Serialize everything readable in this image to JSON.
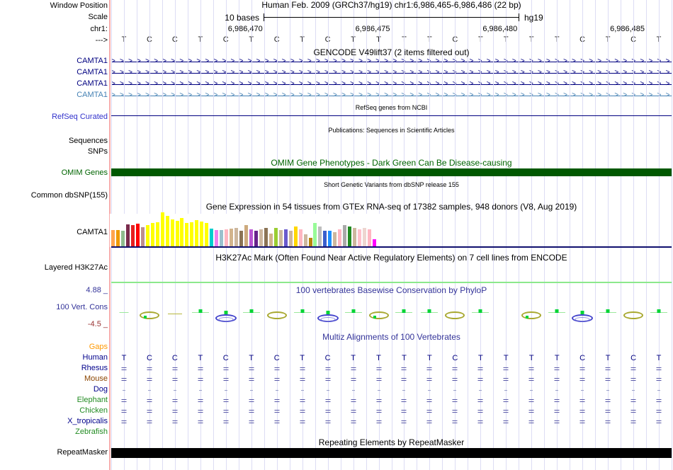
{
  "header": {
    "title": "Human Feb. 2009 (GRCh37/hg19)   chr1:6,986,465-6,986,486 (22 bp)",
    "window_position_label": "Window Position",
    "scale_label": "Scale",
    "scale_value": "10 bases",
    "genome": "hg19",
    "chrom": "chr1:",
    "strand": "--->",
    "coordinate_labels": [
      "6,986,470",
      "6,986,475",
      "6,986,480",
      "6,986,485"
    ]
  },
  "sequence": [
    "T",
    "C",
    "C",
    "T",
    "C",
    "T",
    "C",
    "T",
    "C",
    "T",
    "T",
    "T",
    "T",
    "C",
    "T",
    "T",
    "T",
    "T",
    "C",
    "T",
    "C",
    "T"
  ],
  "colors": {
    "gridline": "#DCDCF4",
    "edge_marker": "#F8ACAC",
    "navy": "#000080",
    "track_blue": "#333399"
  },
  "tracks": {
    "gencode": {
      "title": "GENCODE V49lift37 (2 items filtered out)",
      "genes": [
        {
          "label": "CAMTA1",
          "color": "#000080"
        },
        {
          "label": "CAMTA1",
          "color": "#000080"
        },
        {
          "label": "CAMTA1",
          "color": "#000080"
        },
        {
          "label": "CAMTA1",
          "color": "#4682B4"
        }
      ]
    },
    "refseq": {
      "title": "RefSeq genes from NCBI",
      "label": "RefSeq Curated",
      "label_color": "#3333CC",
      "line_color": "#000080"
    },
    "publications": {
      "title": "Publications: Sequences in Scientific Articles",
      "labels": [
        "Sequences",
        "SNPs"
      ]
    },
    "omim": {
      "title": "OMIM Gene Phenotypes - Dark Green Can Be Disease-causing",
      "label": "OMIM Genes",
      "color": "#005800"
    },
    "dbsnp": {
      "title": "Short Genetic Variants from dbSNP release 155",
      "label": "Common dbSNP(155)"
    },
    "gtex": {
      "label": "CAMTA1",
      "baseline_color": "#10106E"
    },
    "h3k27ac": {
      "title": "H3K27Ac Mark (Often Found Near Active Regulatory Elements) on 7 cell lines from ENCODE",
      "label": "Layered H3K27Ac",
      "line_color": "#8CE88C"
    },
    "conservation": {
      "title": "100 vertebrates Basewise Conservation by PhyloP",
      "label": "100 Vert. Cons",
      "max_label": "4.88 _",
      "min_label": "-4.5 _",
      "max_color": "#333399",
      "min_color": "#993333",
      "glyphs": [
        "gd",
        "og",
        "od",
        "g",
        "b",
        "g",
        "o",
        "g",
        "b",
        "g",
        "og",
        "g",
        "g",
        "o",
        "g",
        "none",
        "og",
        "g",
        "b",
        "g",
        "o",
        "g"
      ]
    },
    "multiz": {
      "title": "Multiz Alignments of 100 Vertebrates",
      "rows": [
        {
          "label": "Gaps",
          "color": "#FF9900",
          "type": "none"
        },
        {
          "label": "Human",
          "color": "#00008B",
          "type": "bases"
        },
        {
          "label": "Rhesus",
          "color": "#00008B",
          "type": "eq"
        },
        {
          "label": "Mouse",
          "color": "#8B4500",
          "type": "eq"
        },
        {
          "label": "Dog",
          "color": "#00008B",
          "type": "dash"
        },
        {
          "label": "Elephant",
          "color": "#228B22",
          "type": "eq"
        },
        {
          "label": "Chicken",
          "color": "#228B22",
          "type": "eq"
        },
        {
          "label": "X_tropicalis",
          "color": "#00008B",
          "type": "eq"
        },
        {
          "label": "Zebrafish",
          "color": "#228B22",
          "type": "none"
        }
      ]
    },
    "repeatmasker": {
      "title": "Repeating Elements by RepeatMasker",
      "label": "RepeatMasker",
      "color": "#000000"
    }
  },
  "chart_data": {
    "type": "bar",
    "title": "Gene Expression in 54 tissues from GTEx RNA-seq of 17382 samples, 948 donors (V8, Aug 2019)",
    "gene": "CAMTA1",
    "xlabel": "",
    "ylabel": "",
    "legend": "none",
    "note": "54 unlabeled GTEx tissue bars; values estimated as bar heights in px",
    "bars": [
      [
        "#FFA54F",
        23
      ],
      [
        "#EE9A00",
        23
      ],
      [
        "#8FBC8F",
        22
      ],
      [
        "#7A2B4D",
        31
      ],
      [
        "#E62020",
        30
      ],
      [
        "#FF0000",
        32
      ],
      [
        "#BC8F8F",
        27
      ],
      [
        "#FFFF00",
        30
      ],
      [
        "#FFFF00",
        33
      ],
      [
        "#FFFF00",
        34
      ],
      [
        "#FFFF00",
        48
      ],
      [
        "#FFFF00",
        43
      ],
      [
        "#FFFF00",
        38
      ],
      [
        "#FFFF00",
        36
      ],
      [
        "#FFFF00",
        40
      ],
      [
        "#FFFF00",
        33
      ],
      [
        "#FFFF00",
        34
      ],
      [
        "#FFFF00",
        37
      ],
      [
        "#FFFF00",
        35
      ],
      [
        "#FFFF00",
        33
      ],
      [
        "#00CDCD",
        25
      ],
      [
        "#EE82EE",
        23
      ],
      [
        "#9AC0CD",
        23
      ],
      [
        "#FFB6C1",
        24
      ],
      [
        "#D2B48C",
        25
      ],
      [
        "#CDB79E",
        26
      ],
      [
        "#8B7355",
        22
      ],
      [
        "#CDAA7D",
        30
      ],
      [
        "#BA55D3",
        24
      ],
      [
        "#68228B",
        22
      ],
      [
        "#CDB79E",
        24
      ],
      [
        "#8B7355",
        26
      ],
      [
        "#D2B48C",
        18
      ],
      [
        "#9ACD32",
        26
      ],
      [
        "#CDB79E",
        23
      ],
      [
        "#6A5ACD",
        24
      ],
      [
        "#CDB79E",
        22
      ],
      [
        "#FFD700",
        28
      ],
      [
        "#FFB6C1",
        24
      ],
      [
        "#CDB79E",
        17
      ],
      [
        "#B8860B",
        12
      ],
      [
        "#98FB98",
        33
      ],
      [
        "#BEBEBE",
        28
      ],
      [
        "#3A5FCD",
        22
      ],
      [
        "#1E90FF",
        22
      ],
      [
        "#CDB79E",
        20
      ],
      [
        "#FFB6C1",
        24
      ],
      [
        "#A9A9A9",
        30
      ],
      [
        "#228B22",
        28
      ],
      [
        "#CDB79E",
        26
      ],
      [
        "#FFC0CB",
        24
      ],
      [
        "#EED5D0",
        26
      ],
      [
        "#FFB6C1",
        24
      ],
      [
        "#FF00FF",
        10
      ]
    ]
  }
}
